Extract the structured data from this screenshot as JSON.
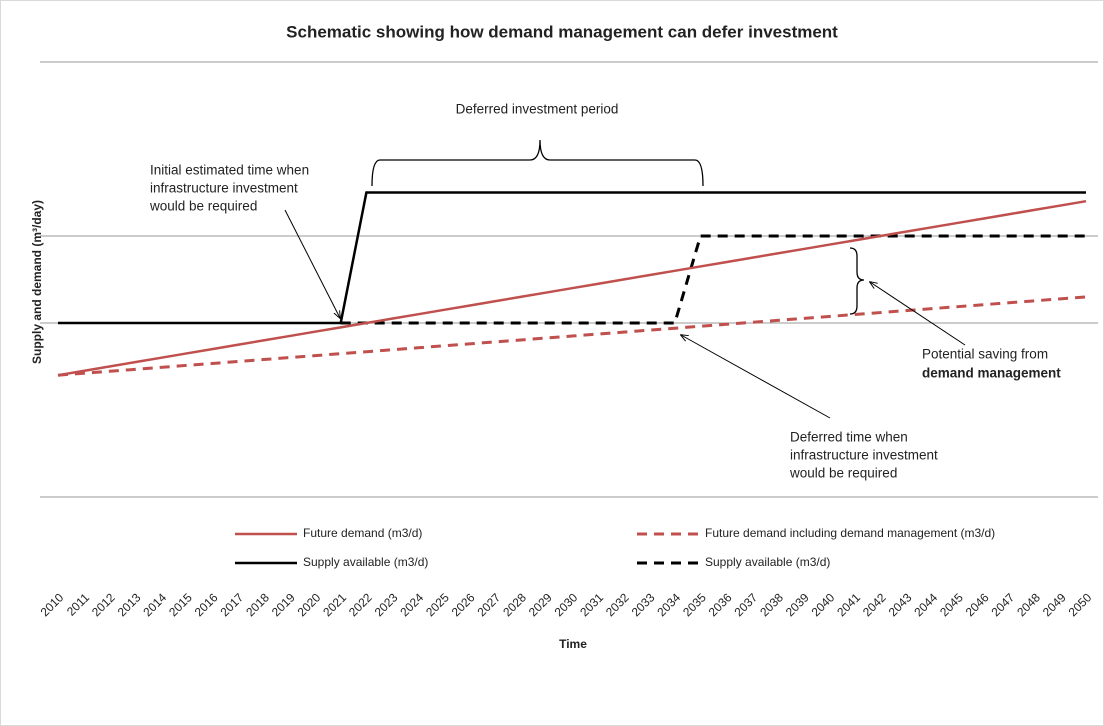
{
  "chart_data": {
    "type": "line",
    "title": "Schematic showing  how demand management can defer investment",
    "x_label": "Time",
    "y_label": "Supply and demand (m³/day)",
    "categories": [
      "2010",
      "2011",
      "2012",
      "2013",
      "2014",
      "2015",
      "2016",
      "2017",
      "2018",
      "2019",
      "2020",
      "2021",
      "2022",
      "2023",
      "2024",
      "2025",
      "2026",
      "2027",
      "2028",
      "2029",
      "2030",
      "2031",
      "2032",
      "2033",
      "2034",
      "2035",
      "2036",
      "2037",
      "2038",
      "2039",
      "2040",
      "2041",
      "2042",
      "2043",
      "2044",
      "2045",
      "2046",
      "2047",
      "2048",
      "2049",
      "2050"
    ],
    "ylim": [
      0,
      5
    ],
    "yticks": [
      2,
      3
    ],
    "grid": true,
    "series": [
      {
        "name": "Future demand (m3/d)",
        "color": "#c0504d",
        "dash": false,
        "values": [
          1.4,
          1.45,
          1.5,
          1.55,
          1.6,
          1.65,
          1.7,
          1.75,
          1.8,
          1.85,
          1.9,
          1.95,
          2.0,
          2.05,
          2.1,
          2.15,
          2.2,
          2.25,
          2.3,
          2.35,
          2.4,
          2.45,
          2.5,
          2.55,
          2.6,
          2.65,
          2.7,
          2.75,
          2.8,
          2.85,
          2.9,
          2.95,
          3.0,
          3.05,
          3.1,
          3.15,
          3.2,
          3.25,
          3.3,
          3.35,
          3.4
        ]
      },
      {
        "name": "Future demand including demand management (m3/d)",
        "color": "#c0504d",
        "dash": true,
        "values": [
          1.4,
          1.4225,
          1.445,
          1.4675,
          1.49,
          1.5125,
          1.535,
          1.5575,
          1.58,
          1.6025,
          1.625,
          1.6475,
          1.67,
          1.6925,
          1.715,
          1.7375,
          1.76,
          1.7825,
          1.805,
          1.8275,
          1.85,
          1.8725,
          1.895,
          1.9175,
          1.94,
          1.9625,
          1.985,
          2.0075,
          2.03,
          2.0525,
          2.075,
          2.0975,
          2.12,
          2.1425,
          2.165,
          2.1875,
          2.21,
          2.2325,
          2.255,
          2.2775,
          2.3
        ]
      },
      {
        "name": "Supply available (m3/d)",
        "color": "#000000",
        "dash": false,
        "values": [
          2,
          2,
          2,
          2,
          2,
          2,
          2,
          2,
          2,
          2,
          2,
          2,
          3.5,
          3.5,
          3.5,
          3.5,
          3.5,
          3.5,
          3.5,
          3.5,
          3.5,
          3.5,
          3.5,
          3.5,
          3.5,
          3.5,
          3.5,
          3.5,
          3.5,
          3.5,
          3.5,
          3.5,
          3.5,
          3.5,
          3.5,
          3.5,
          3.5,
          3.5,
          3.5,
          3.5,
          3.5
        ]
      },
      {
        "name": "Supply available (m3/d)",
        "color": "#000000",
        "dash": true,
        "values": [
          null,
          null,
          null,
          null,
          null,
          null,
          null,
          null,
          null,
          null,
          null,
          2,
          2,
          2,
          2,
          2,
          2,
          2,
          2,
          2,
          2,
          2,
          2,
          2,
          2,
          3,
          3,
          3,
          3,
          3,
          3,
          3,
          3,
          3,
          3,
          3,
          3,
          3,
          3,
          3,
          3
        ]
      }
    ],
    "annotations": [
      {
        "lines": [
          "Deferred investment period"
        ]
      },
      {
        "lines": [
          "Initial estimated time when",
          "infrastructure investment",
          "would be required"
        ]
      },
      {
        "lines": [
          "Potential saving from",
          "demand management"
        ]
      },
      {
        "lines": [
          "Deferred time when",
          "infrastructure investment",
          "would be required"
        ]
      }
    ]
  }
}
